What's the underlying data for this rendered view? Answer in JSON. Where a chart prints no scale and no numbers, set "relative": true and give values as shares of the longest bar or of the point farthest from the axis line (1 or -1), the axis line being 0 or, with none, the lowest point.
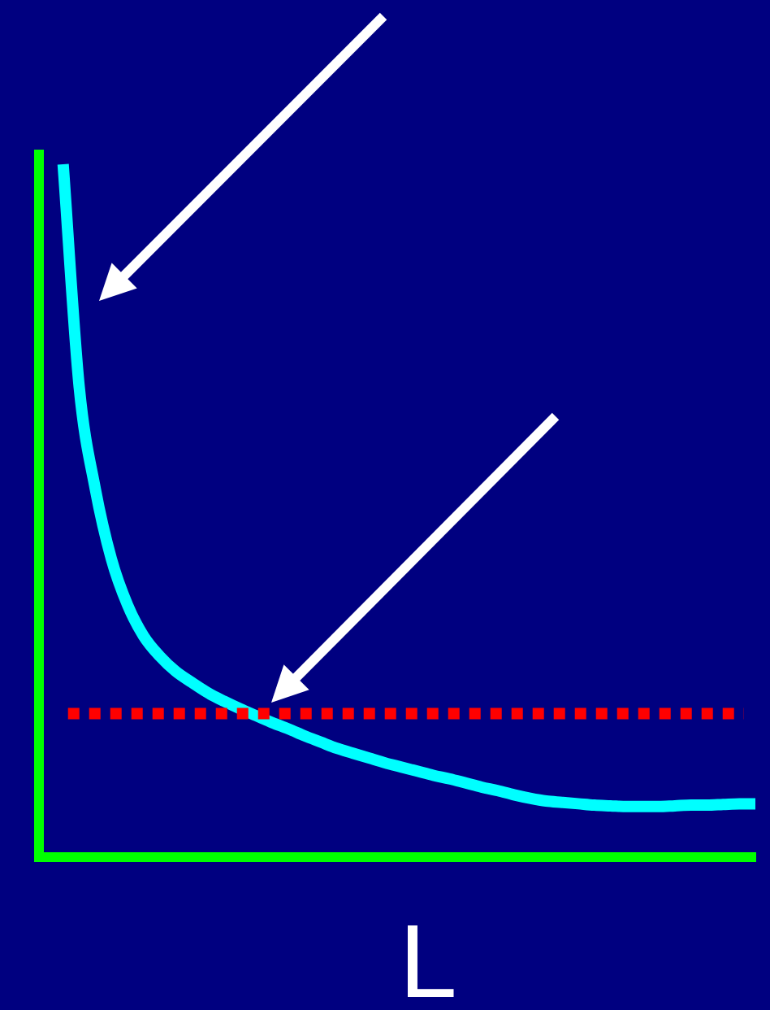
{
  "chart_data": {
    "type": "line",
    "xlabel": "L",
    "relative": true,
    "categories": [
      null,
      null,
      null,
      null,
      null,
      null,
      null,
      null,
      null,
      null,
      null,
      null,
      null,
      null,
      null,
      null,
      null,
      null,
      null,
      null,
      null,
      null,
      null,
      null,
      null,
      null,
      null,
      null,
      null,
      null,
      null,
      null,
      null,
      null,
      null,
      null,
      null,
      null,
      null,
      null,
      null,
      null,
      null,
      null
    ],
    "values": [
      1.0,
      0.678,
      0.531,
      0.43,
      0.364,
      0.319,
      0.29,
      0.268,
      0.252,
      0.237,
      0.225,
      0.214,
      0.204,
      0.194,
      0.185,
      0.175,
      0.166,
      0.157,
      0.15,
      0.143,
      0.136,
      0.13,
      0.124,
      0.118,
      0.113,
      0.107,
      0.101,
      0.096,
      0.09,
      0.085,
      0.081,
      0.079,
      0.077,
      0.075,
      0.074,
      0.073,
      0.073,
      0.073,
      0.074,
      0.075,
      0.075,
      0.076,
      0.077,
      0.077
    ],
    "color": "#00ffff",
    "marker": "none",
    "line_style": "solid",
    "grid": false,
    "legend": false,
    "ref_lines": [
      {
        "axis": "y",
        "value": 0.207,
        "color": "#ff0000",
        "line_style": "dotted"
      }
    ]
  }
}
